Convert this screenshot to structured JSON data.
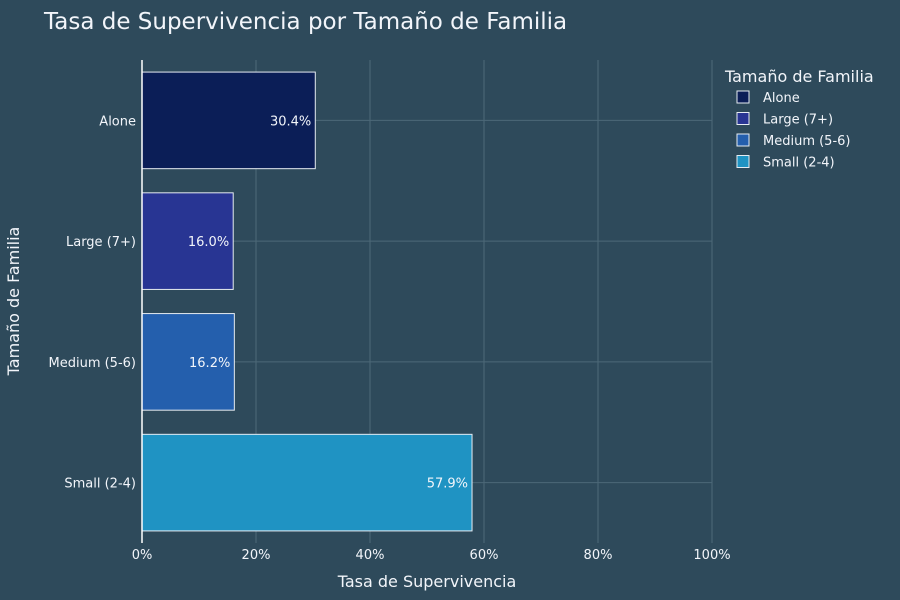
{
  "chart_data": {
    "type": "bar",
    "orientation": "horizontal",
    "title": "Tasa de Supervivencia por Tamaño de Familia",
    "xlabel": "Tasa de Supervivencia",
    "ylabel": "Tamaño de Familia",
    "xlim": [
      0,
      100
    ],
    "x_ticks": [
      "0%",
      "20%",
      "40%",
      "60%",
      "80%",
      "100%"
    ],
    "x_tick_values": [
      0,
      20,
      40,
      60,
      80,
      100
    ],
    "categories": [
      "Alone",
      "Large (7+)",
      "Medium (5-6)",
      "Small (2-4)"
    ],
    "values": [
      30.4,
      16.0,
      16.2,
      57.9
    ],
    "data_labels": [
      "30.4%",
      "16.0%",
      "16.2%",
      "57.9%"
    ],
    "colors": [
      "#0b1e57",
      "#283593",
      "#245fad",
      "#1f93c3"
    ],
    "grid": true,
    "legend": {
      "title": "Tamaño de Familia",
      "placement": "top-right",
      "entries": [
        "Alone",
        "Large (7+)",
        "Medium (5-6)",
        "Small (2-4)"
      ]
    }
  }
}
